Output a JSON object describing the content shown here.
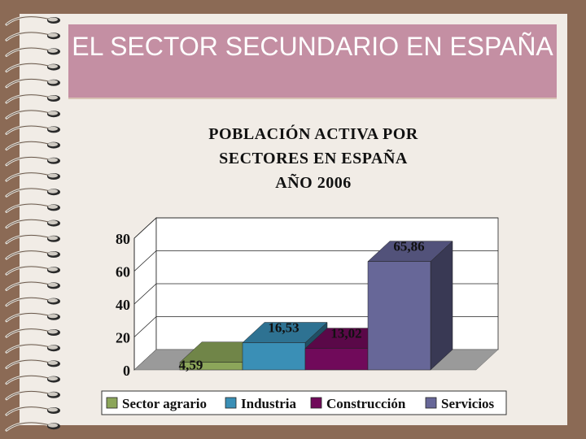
{
  "slide": {
    "title": "EL SECTOR SECUNDARIO EN ESPAÑA"
  },
  "colors": {
    "background": "#8b6a55",
    "paper": "#f1ece6",
    "title_band": "#c48fa3",
    "title_text": "#ffffff"
  },
  "chart_data": {
    "type": "bar",
    "title": "POBLACIÓN ACTIVA POR SECTORES EN ESPAÑA AÑO 2006",
    "title_lines": [
      "POBLACIÓN ACTIVA POR",
      "SECTORES EN ESPAÑA",
      "AÑO 2006"
    ],
    "categories": [
      "Sector agrario",
      "Industria",
      "Construcción",
      "Servicios"
    ],
    "values": [
      4.59,
      16.53,
      13.02,
      65.86
    ],
    "value_labels": [
      "4,59",
      "16,53",
      "13,02",
      "65,86"
    ],
    "colors": [
      "#8ca65a",
      "#3a8fb6",
      "#700a5a",
      "#676798"
    ],
    "yticks": [
      "0",
      "20",
      "40",
      "60",
      "80"
    ],
    "ylim": [
      0,
      80
    ],
    "grid": true,
    "legend": "bottom",
    "style": "3d"
  }
}
